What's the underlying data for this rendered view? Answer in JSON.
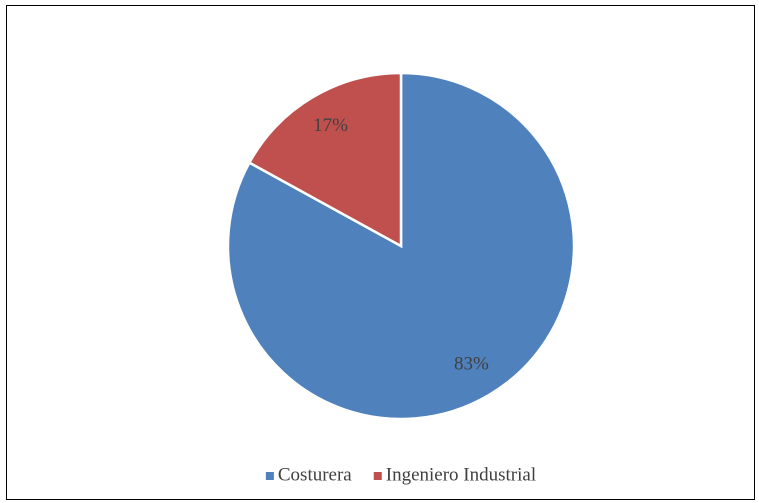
{
  "chart_data": {
    "type": "pie",
    "categories": [
      "Costurera",
      "Ingeniero Industrial"
    ],
    "values": [
      83,
      17
    ],
    "value_labels": [
      "83%",
      "17%"
    ],
    "colors": [
      "#4f81bd",
      "#c0504d"
    ],
    "legend": "bottom"
  }
}
